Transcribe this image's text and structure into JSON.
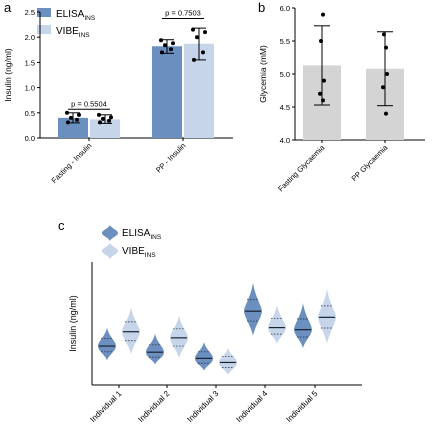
{
  "colors": {
    "elisa": "#6b8fbe",
    "vibe": "#c6d5ea",
    "gray_bar": "#d4d4d4",
    "axis": "#000000"
  },
  "panels": {
    "a": {
      "letter": "a"
    },
    "b": {
      "letter": "b"
    },
    "c": {
      "letter": "c"
    }
  },
  "legend": {
    "elisa_main": "ELISA",
    "elisa_sub": "INS",
    "vibe_main": "VIBE",
    "vibe_sub": "INS"
  },
  "chart_data": [
    {
      "panel": "a",
      "type": "bar",
      "ylabel": "Insulin (ng/ml)",
      "ylim": [
        0,
        2.5
      ],
      "yticks": [
        "0.0",
        "0.5",
        "1.0",
        "1.5",
        "2.0",
        "2.5"
      ],
      "categories": [
        "Fasting - Insulin",
        "PP - Insulin"
      ],
      "series": [
        {
          "name": "ELISAINS",
          "values": [
            0.4,
            1.82
          ],
          "errors": [
            [
              0.3,
              0.5
            ],
            [
              1.68,
              1.95
            ]
          ]
        },
        {
          "name": "VIBEINS",
          "values": [
            0.37,
            1.87
          ],
          "errors": [
            [
              0.29,
              0.46
            ],
            [
              1.55,
              2.18
            ]
          ]
        }
      ],
      "points": [
        [
          [
            0.31,
            0.36,
            0.4,
            0.46,
            0.5
          ],
          [
            0.31,
            0.34,
            0.38,
            0.41,
            0.46
          ]
        ],
        [
          [
            1.7,
            1.76,
            1.84,
            1.88,
            1.94
          ],
          [
            1.55,
            1.7,
            2.0,
            2.1,
            2.15
          ]
        ]
      ],
      "annotations": [
        "p = 0.5504",
        "p = 0.7503"
      ],
      "annotation_y": [
        0.57,
        2.37
      ]
    },
    {
      "panel": "b",
      "type": "bar",
      "ylabel": "Glycemia (mM)",
      "ylim": [
        4.0,
        6.0
      ],
      "yticks": [
        "4.0",
        "4.5",
        "5.0",
        "5.5",
        "6.0"
      ],
      "categories": [
        "Fasting Glycaemia",
        "PP Glycaemia"
      ],
      "values": [
        5.13,
        5.08
      ],
      "errors": [
        [
          4.53,
          5.73
        ],
        [
          4.52,
          5.64
        ]
      ],
      "points": [
        [
          5.5,
          5.9,
          4.7,
          4.9,
          4.6
        ],
        [
          5.6,
          5.4,
          4.8,
          5.0,
          4.4
        ]
      ]
    },
    {
      "panel": "c",
      "type": "violin",
      "ylabel": "Insulin (ng/ml)",
      "categories": [
        "Individual 1",
        "Individual 2",
        "Individual 3",
        "Individual 4",
        "Individual 5"
      ],
      "series": [
        {
          "name": "ELISAINS",
          "medians": [
            0.39,
            0.36,
            0.33,
            0.56,
            0.47
          ],
          "ranges": [
            [
              0.32,
              0.48
            ],
            [
              0.3,
              0.45
            ],
            [
              0.27,
              0.41
            ],
            [
              0.44,
              0.7
            ],
            [
              0.38,
              0.6
            ]
          ]
        },
        {
          "name": "VIBEINS",
          "medians": [
            0.46,
            0.43,
            0.31,
            0.48,
            0.53
          ],
          "ranges": [
            [
              0.35,
              0.58
            ],
            [
              0.33,
              0.54
            ],
            [
              0.25,
              0.38
            ],
            [
              0.4,
              0.59
            ],
            [
              0.4,
              0.67
            ]
          ]
        }
      ]
    }
  ]
}
